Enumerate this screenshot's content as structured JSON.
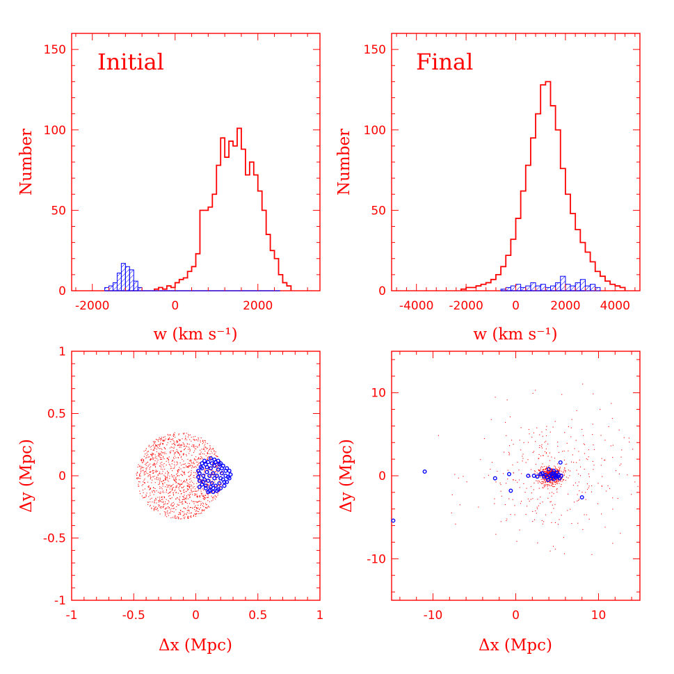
{
  "figure": {
    "colors": {
      "total": "#ff0000",
      "subgroup": "#0000ff",
      "frame": "#ff0000"
    }
  },
  "chart_data": [
    {
      "type": "histogram",
      "title": "Initial",
      "xlabel": "w (km s⁻¹)",
      "ylabel": "Number",
      "xlim": [
        -2500,
        3500
      ],
      "ylim": [
        0,
        160
      ],
      "xticks": [
        -2000,
        0,
        2000
      ],
      "yticks": [
        0,
        50,
        100,
        150
      ],
      "bin_width": 100,
      "series": [
        {
          "style": "step",
          "bins": [
            [
              -500,
              1
            ],
            [
              -400,
              2
            ],
            [
              -300,
              1
            ],
            [
              -200,
              3
            ],
            [
              -100,
              2
            ],
            [
              0,
              5
            ],
            [
              100,
              7
            ],
            [
              200,
              8
            ],
            [
              300,
              12
            ],
            [
              400,
              15
            ],
            [
              500,
              23
            ],
            [
              600,
              50
            ],
            [
              700,
              50
            ],
            [
              800,
              52
            ],
            [
              900,
              60
            ],
            [
              1000,
              78
            ],
            [
              1100,
              95
            ],
            [
              1200,
              83
            ],
            [
              1300,
              93
            ],
            [
              1400,
              90
            ],
            [
              1500,
              101
            ],
            [
              1600,
              88
            ],
            [
              1700,
              72
            ],
            [
              1800,
              80
            ],
            [
              1900,
              72
            ],
            [
              2000,
              62
            ],
            [
              2100,
              50
            ],
            [
              2200,
              35
            ],
            [
              2300,
              25
            ],
            [
              2400,
              20
            ],
            [
              2500,
              10
            ],
            [
              2600,
              5
            ],
            [
              2700,
              3
            ]
          ]
        },
        {
          "style": "hatched",
          "bins": [
            [
              -1700,
              2
            ],
            [
              -1600,
              3
            ],
            [
              -1500,
              5
            ],
            [
              -1400,
              11
            ],
            [
              -1300,
              17
            ],
            [
              -1200,
              15
            ],
            [
              -1100,
              13
            ],
            [
              -1000,
              6
            ],
            [
              -900,
              2
            ]
          ]
        }
      ]
    },
    {
      "type": "histogram",
      "title": "Final",
      "xlabel": "w (km s⁻¹)",
      "ylabel": "Number",
      "xlim": [
        -5000,
        5000
      ],
      "ylim": [
        0,
        160
      ],
      "xticks": [
        -4000,
        -2000,
        0,
        2000,
        4000
      ],
      "yticks": [
        0,
        50,
        100,
        150
      ],
      "bin_width": 200,
      "series": [
        {
          "style": "step",
          "bins": [
            [
              -2200,
              1
            ],
            [
              -2000,
              2
            ],
            [
              -1800,
              2
            ],
            [
              -1600,
              3
            ],
            [
              -1400,
              4
            ],
            [
              -1200,
              5
            ],
            [
              -1000,
              7
            ],
            [
              -800,
              10
            ],
            [
              -600,
              15
            ],
            [
              -400,
              22
            ],
            [
              -200,
              32
            ],
            [
              0,
              45
            ],
            [
              200,
              62
            ],
            [
              400,
              78
            ],
            [
              600,
              95
            ],
            [
              800,
              110
            ],
            [
              1000,
              128
            ],
            [
              1200,
              130
            ],
            [
              1400,
              115
            ],
            [
              1600,
              100
            ],
            [
              1800,
              76
            ],
            [
              2000,
              60
            ],
            [
              2200,
              48
            ],
            [
              2400,
              38
            ],
            [
              2600,
              30
            ],
            [
              2800,
              24
            ],
            [
              3000,
              18
            ],
            [
              3200,
              12
            ],
            [
              3400,
              9
            ],
            [
              3600,
              6
            ],
            [
              3800,
              4
            ],
            [
              4000,
              3
            ],
            [
              4200,
              2
            ]
          ]
        },
        {
          "style": "hatched",
          "bins": [
            [
              -600,
              1
            ],
            [
              -400,
              2
            ],
            [
              -200,
              3
            ],
            [
              0,
              4
            ],
            [
              200,
              2
            ],
            [
              400,
              3
            ],
            [
              600,
              5
            ],
            [
              800,
              3
            ],
            [
              1000,
              4
            ],
            [
              1200,
              2
            ],
            [
              1400,
              3
            ],
            [
              1600,
              5
            ],
            [
              1800,
              9
            ],
            [
              2000,
              4
            ],
            [
              2200,
              3
            ],
            [
              2400,
              5
            ],
            [
              2600,
              7
            ],
            [
              2800,
              3
            ],
            [
              3000,
              4
            ],
            [
              3200,
              2
            ]
          ]
        }
      ]
    },
    {
      "type": "scatter",
      "xlabel": "Δx (Mpc)",
      "ylabel": "Δy (Mpc)",
      "xlim": [
        -1,
        1
      ],
      "ylim": [
        -1,
        1
      ],
      "xticks": [
        -1,
        -0.5,
        0,
        0.5,
        1
      ],
      "xtick_labels": [
        "-1",
        "-0.5",
        "0",
        "0.5",
        "1"
      ],
      "yticks": [
        -1,
        -0.5,
        0,
        0.5,
        1
      ],
      "ytick_labels": [
        "-1",
        "-0.5",
        "0",
        "0.5",
        "1"
      ],
      "series": [
        {
          "marker": "dot",
          "distribution": "uniform disc",
          "center": [
            -0.13,
            0.0
          ],
          "radius": 0.35,
          "count": 1400
        },
        {
          "marker": "open-circle",
          "points": [
            [
              0.03,
              0.02
            ],
            [
              0.05,
              0.06
            ],
            [
              0.08,
              0.09
            ],
            [
              0.1,
              0.11
            ],
            [
              0.12,
              0.14
            ],
            [
              0.15,
              0.13
            ],
            [
              0.18,
              0.12
            ],
            [
              0.2,
              0.1
            ],
            [
              0.22,
              0.08
            ],
            [
              0.25,
              0.06
            ],
            [
              0.27,
              0.04
            ],
            [
              0.28,
              0.01
            ],
            [
              0.27,
              -0.02
            ],
            [
              0.25,
              -0.05
            ],
            [
              0.23,
              -0.08
            ],
            [
              0.2,
              -0.1
            ],
            [
              0.17,
              -0.12
            ],
            [
              0.14,
              -0.13
            ],
            [
              0.11,
              -0.12
            ],
            [
              0.08,
              -0.1
            ],
            [
              0.05,
              -0.07
            ],
            [
              0.03,
              -0.04
            ],
            [
              0.02,
              -0.01
            ],
            [
              0.02,
              0.04
            ],
            [
              0.06,
              0.0
            ],
            [
              0.09,
              0.03
            ],
            [
              0.12,
              0.06
            ],
            [
              0.15,
              0.08
            ],
            [
              0.18,
              0.05
            ],
            [
              0.21,
              0.02
            ],
            [
              0.24,
              0.0
            ],
            [
              0.22,
              -0.03
            ],
            [
              0.19,
              -0.06
            ],
            [
              0.16,
              -0.08
            ],
            [
              0.13,
              -0.06
            ],
            [
              0.1,
              -0.04
            ],
            [
              0.07,
              -0.03
            ],
            [
              0.11,
              0.0
            ],
            [
              0.14,
              0.02
            ],
            [
              0.17,
              0.0
            ],
            [
              0.2,
              -0.02
            ],
            [
              0.13,
              0.1
            ],
            [
              0.16,
              0.11
            ],
            [
              0.09,
              0.07
            ],
            [
              0.05,
              0.1
            ],
            [
              0.24,
              0.04
            ],
            [
              0.26,
              -0.01
            ],
            [
              0.18,
              -0.11
            ],
            [
              0.12,
              -0.09
            ],
            [
              0.06,
              -0.05
            ],
            [
              0.04,
              0.07
            ],
            [
              0.15,
              -0.02
            ],
            [
              0.21,
              0.06
            ],
            [
              0.1,
              -0.13
            ],
            [
              0.08,
              -0.08
            ],
            [
              0.19,
              0.09
            ],
            [
              0.07,
              0.12
            ],
            [
              0.23,
              -0.05
            ],
            [
              0.14,
              -0.1
            ],
            [
              0.03,
              -0.09
            ]
          ]
        }
      ]
    },
    {
      "type": "scatter",
      "xlabel": "Δx (Mpc)",
      "ylabel": "Δy (Mpc)",
      "xlim": [
        -15,
        15
      ],
      "ylim": [
        -15,
        15
      ],
      "xticks": [
        -10,
        0,
        10
      ],
      "xtick_labels": [
        "-10",
        "0",
        "10"
      ],
      "yticks": [
        -10,
        0,
        10
      ],
      "ytick_labels": [
        "-10",
        "0",
        "10"
      ],
      "series": [
        {
          "marker": "dot",
          "distribution": "concentrated cluster with sparse halo",
          "center": [
            4.2,
            0.0
          ],
          "core_count": 500,
          "halo_count": 350
        },
        {
          "marker": "open-circle",
          "points": [
            [
              -14.8,
              -5.4
            ],
            [
              -11.0,
              0.5
            ],
            [
              -2.5,
              -0.3
            ],
            [
              -0.8,
              0.2
            ],
            [
              -0.6,
              -1.8
            ],
            [
              1.5,
              0.0
            ],
            [
              2.2,
              0.0
            ],
            [
              2.6,
              -0.1
            ],
            [
              3.0,
              0.2
            ],
            [
              3.2,
              0.3
            ],
            [
              3.4,
              -0.1
            ],
            [
              3.6,
              0.1
            ],
            [
              3.8,
              -0.2
            ],
            [
              4.0,
              0.8
            ],
            [
              4.1,
              0.0
            ],
            [
              4.2,
              -0.3
            ],
            [
              4.3,
              0.2
            ],
            [
              4.4,
              -0.1
            ],
            [
              4.5,
              0.3
            ],
            [
              4.6,
              -0.4
            ],
            [
              4.7,
              0.1
            ],
            [
              4.8,
              -0.2
            ],
            [
              4.9,
              0.0
            ],
            [
              5.0,
              0.4
            ],
            [
              5.1,
              -0.1
            ],
            [
              5.2,
              0.1
            ],
            [
              5.3,
              -0.3
            ],
            [
              5.5,
              0.0
            ],
            [
              3.9,
              -0.5
            ],
            [
              4.6,
              0.6
            ],
            [
              5.4,
              1.6
            ],
            [
              8.0,
              -2.6
            ]
          ]
        }
      ]
    }
  ]
}
